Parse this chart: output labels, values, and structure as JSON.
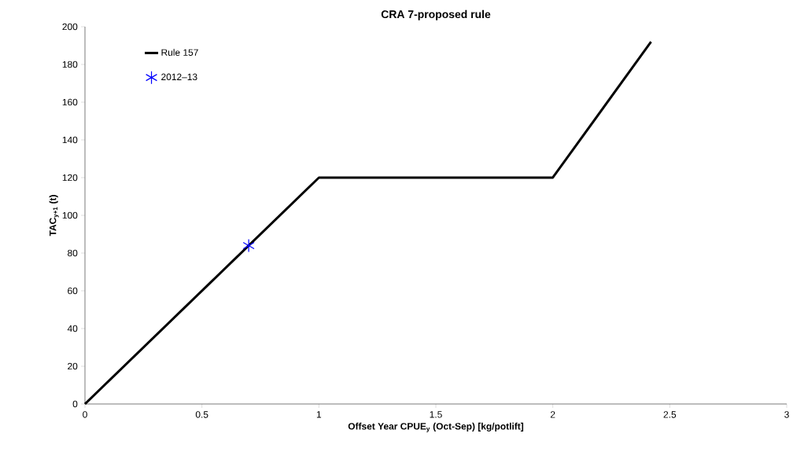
{
  "chart_data": {
    "type": "line",
    "title": "CRA 7-proposed rule",
    "xlabel": "Offset Year CPUE$_{y}$ (Oct-Sep) [kg/potlift]",
    "ylabel": "TAC$_{y+1}$ (t)",
    "xlim": [
      0,
      3
    ],
    "ylim": [
      0,
      200
    ],
    "xticks": [
      0,
      0.5,
      1,
      1.5,
      2,
      2.5,
      3
    ],
    "yticks": [
      0,
      20,
      40,
      60,
      80,
      100,
      120,
      140,
      160,
      180,
      200
    ],
    "grid": false,
    "legend": "top left",
    "series": [
      {
        "name": "Rule 157",
        "color": "#000000",
        "marker": "none",
        "line_style": "solid",
        "x": [
          0,
          1,
          2,
          2.42
        ],
        "values": [
          0,
          120,
          120,
          192
        ]
      },
      {
        "name": "2012–13",
        "type": "scatter",
        "color": "#0000ff",
        "marker": "cross",
        "x": [
          0.7
        ],
        "values": [
          84
        ]
      }
    ]
  }
}
